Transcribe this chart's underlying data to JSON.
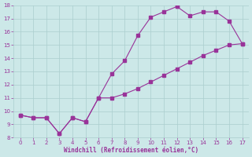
{
  "xlabel": "Windchill (Refroidissement éolien,°C)",
  "upper_x": [
    0,
    1,
    2,
    3,
    4,
    5,
    6,
    7,
    8,
    9,
    10,
    11,
    12
  ],
  "upper_y": [
    9.7,
    9.5,
    9.5,
    8.3,
    9.5,
    9.2,
    11.0,
    12.8,
    13.8,
    15.7,
    17.1,
    17.5,
    17.9
  ],
  "top_x": [
    12,
    13,
    14,
    15,
    16,
    17
  ],
  "top_y": [
    17.9,
    17.2,
    17.5,
    17.5,
    16.8,
    15.1
  ],
  "lower_x": [
    0,
    1,
    2,
    3,
    4,
    5,
    6,
    7,
    8,
    9,
    10,
    11,
    12,
    13,
    14,
    15,
    16,
    17
  ],
  "lower_y": [
    9.7,
    9.5,
    9.5,
    8.3,
    9.5,
    9.2,
    11.0,
    11.0,
    11.3,
    11.7,
    12.2,
    12.7,
    13.2,
    13.7,
    14.2,
    14.6,
    15.0,
    15.1
  ],
  "color": "#993399",
  "bg_color": "#cce8e8",
  "grid_color": "#aacece",
  "xlim": [
    -0.5,
    17.5
  ],
  "ylim": [
    8,
    18
  ],
  "xticks": [
    0,
    1,
    2,
    3,
    4,
    5,
    6,
    7,
    8,
    9,
    10,
    11,
    12,
    13,
    14,
    15,
    16,
    17
  ],
  "yticks": [
    8,
    9,
    10,
    11,
    12,
    13,
    14,
    15,
    16,
    17,
    18
  ]
}
